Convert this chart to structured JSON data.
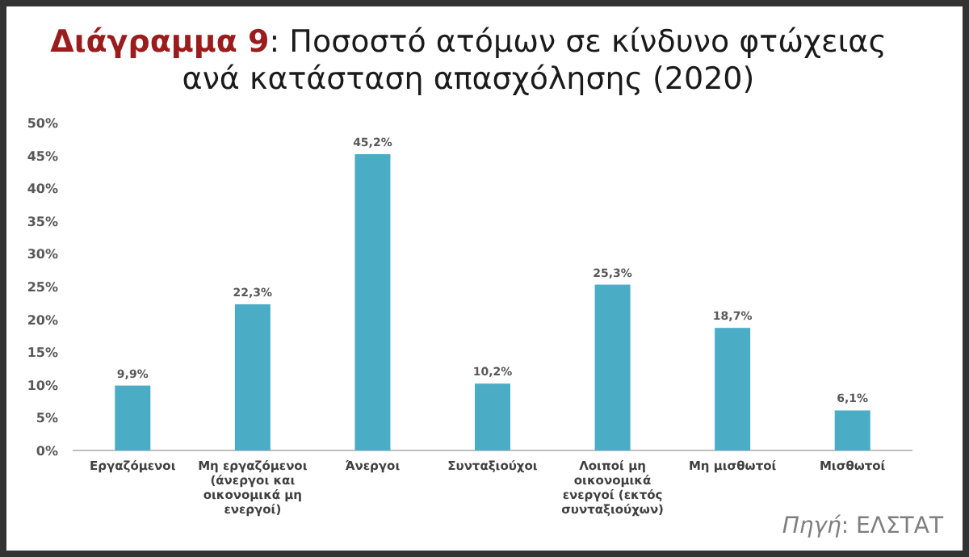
{
  "chart_data": {
    "type": "bar",
    "title": "Διάγραμμα 9: Ποσοστό ατόμων σε κίνδυνο φτώχειας ανά κατάσταση απασχόλησης (2020)",
    "categories": [
      "Εργαζόμενοι",
      "Μη εργαζόμενοι (άνεργοι και οικονομικά μη ενεργοί)",
      "Άνεργοι",
      "Συνταξιούχοι",
      "Λοιποί μη οικονομικά ενεργοί (εκτός συνταξιούχων)",
      "Μη μισθωτοί",
      "Μισθωτοί"
    ],
    "values": [
      9.9,
      22.3,
      45.2,
      10.2,
      25.3,
      18.7,
      6.1
    ],
    "value_labels": [
      "9,9%",
      "22,3%",
      "45,2%",
      "10,2%",
      "25,3%",
      "18,7%",
      "6,1%"
    ],
    "color": "#4bacc6",
    "ylim": [
      0,
      50
    ],
    "yticks": [
      {
        "value": 0,
        "label": "0%"
      },
      {
        "value": 5,
        "label": "5%"
      },
      {
        "value": 10,
        "label": "10%"
      },
      {
        "value": 15,
        "label": "15%"
      },
      {
        "value": 20,
        "label": "20%"
      },
      {
        "value": 25,
        "label": "25%"
      },
      {
        "value": 30,
        "label": "30%"
      },
      {
        "value": 35,
        "label": "35%"
      },
      {
        "value": 40,
        "label": "40%"
      },
      {
        "value": 45,
        "label": "45%"
      },
      {
        "value": 50,
        "label": "50%"
      }
    ],
    "grid": false,
    "annotations": [
      "Πηγή: ΕΛΣΤΑΤ"
    ]
  }
}
